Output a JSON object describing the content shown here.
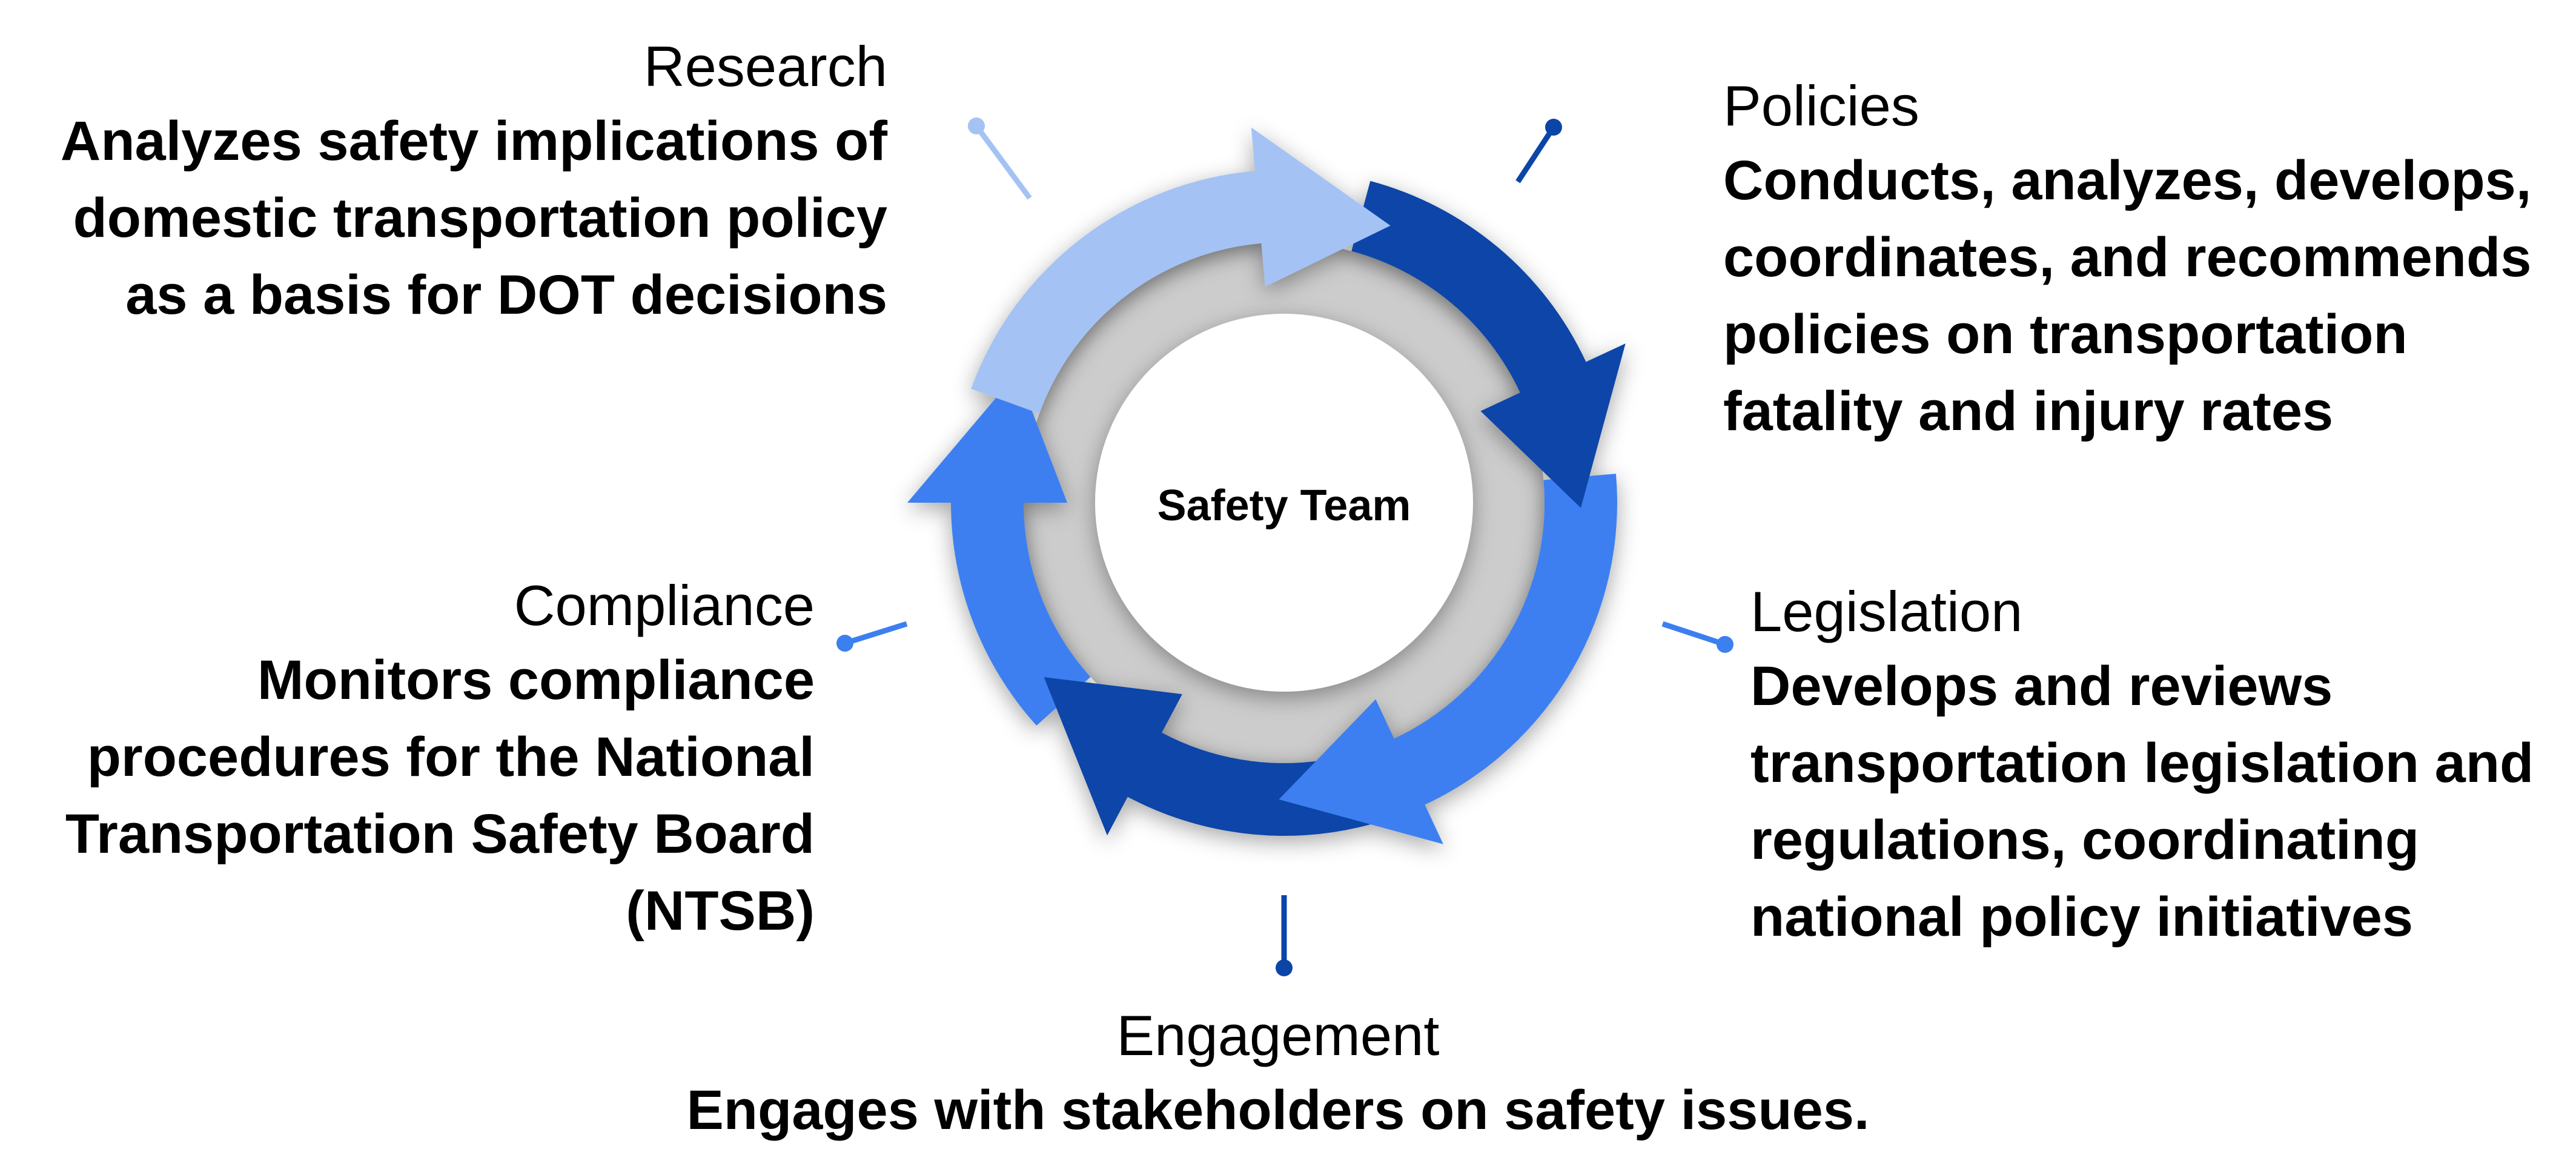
{
  "center": {
    "label": "Safety Team"
  },
  "segments": [
    {
      "id": "research",
      "title": "Research",
      "description_lines": [
        "Analyzes safety implications of",
        "domestic transportation policy",
        "as a basis for DOT decisions"
      ],
      "color": "#a4c2f4"
    },
    {
      "id": "policies",
      "title": "Policies",
      "description_lines": [
        "Conducts, analyzes, develops,",
        "coordinates, and recommends",
        "policies on transportation",
        "fatality and injury rates"
      ],
      "color": "#0b45a8"
    },
    {
      "id": "legislation",
      "title": "Legislation",
      "description_lines": [
        "Develops and reviews",
        "transportation legislation and",
        "regulations, coordinating",
        "national policy initiatives"
      ],
      "color": "#3c7ff0"
    },
    {
      "id": "engagement",
      "title": "Engagement",
      "description_lines": [
        "Engages with stakeholders on safety issues."
      ],
      "color": "#0b45a8"
    },
    {
      "id": "compliance",
      "title": "Compliance",
      "description_lines": [
        "Monitors compliance",
        "procedures for the National",
        "Transportation Safety Board",
        "(NTSB)"
      ],
      "color": "#3c7ff0"
    }
  ],
  "colors": {
    "inner_ring": "#cccccc",
    "center_fill": "#ffffff",
    "connector_light": "#a4c2f4",
    "connector_dark": "#0b45a8",
    "connector_mid": "#3c7ff0"
  }
}
